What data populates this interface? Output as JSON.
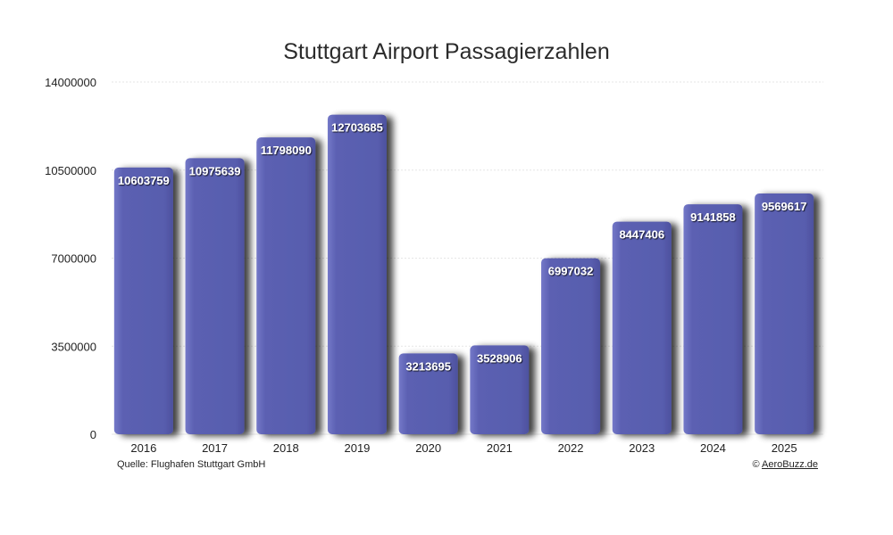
{
  "chart_data": {
    "type": "bar",
    "title": "Stuttgart Airport Passagierzahlen",
    "xlabel": "",
    "ylabel": "",
    "categories": [
      "2016",
      "2017",
      "2018",
      "2019",
      "2020",
      "2021",
      "2022",
      "2023",
      "2024",
      "2025"
    ],
    "values": [
      10603759,
      10975639,
      11798090,
      12703685,
      3213695,
      3528906,
      6997032,
      8447406,
      9141858,
      9569617
    ],
    "data_labels": [
      "10603759",
      "10975639",
      "11798090",
      "12703685",
      "3213695",
      "3528906",
      "6997032",
      "8447406",
      "9141858",
      "9569617"
    ],
    "ylim": [
      0,
      14000000
    ],
    "yticks": [
      0,
      3500000,
      7000000,
      10500000,
      14000000
    ],
    "ytick_labels": [
      "0",
      "3500000",
      "7000000",
      "10500000",
      "14000000"
    ],
    "grid": true,
    "legend": "none",
    "bar_color": "#5a5fb0"
  },
  "footer": {
    "source": "Quelle: Flughafen Stuttgart GmbH",
    "copyright_symbol": "©",
    "copyright_site": "AeroBuzz.de"
  }
}
